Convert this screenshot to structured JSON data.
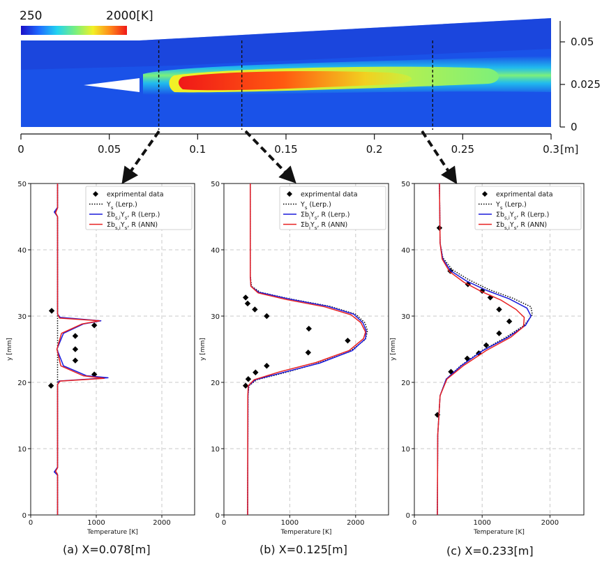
{
  "contour": {
    "colorbar": {
      "min_label": "250",
      "max_label": "2000[K]",
      "colors": [
        "#1a10c8",
        "#1f6bff",
        "#22d3f0",
        "#7df07a",
        "#f2f026",
        "#ff8a1a",
        "#f01818"
      ]
    },
    "x_axis": {
      "ticks": [
        0,
        0.05,
        0.1,
        0.15,
        0.2,
        0.25,
        0.3
      ],
      "tick_labels": [
        "0",
        "0.05",
        "0.1",
        "0.15",
        "0.2",
        "0.25",
        "0.3"
      ],
      "unit": "[m]"
    },
    "y_axis": {
      "ticks": [
        0,
        0.025,
        0.05
      ],
      "tick_labels": [
        "0",
        "0.025",
        "0.05"
      ]
    },
    "probe_lines_x": [
      0.078,
      0.125,
      0.233
    ]
  },
  "chart_data": [
    {
      "type": "line",
      "caption": "(a) X=0.078[m]",
      "xlabel": "Temperature [K]",
      "ylabel": "y [mm]",
      "xlim": [
        0,
        2500
      ],
      "ylim": [
        0,
        50
      ],
      "xticks": [
        0,
        1000,
        2000
      ],
      "yticks": [
        0,
        10,
        20,
        30,
        40,
        50
      ],
      "grid": true,
      "legend_position": "top-right",
      "legend": [
        "exprimental data",
        "Y_s (Lerp.)",
        "Σb_{s,i}Y_s, R (Lerp.)",
        "Σb_{s,i}Y_s, R (ANN)"
      ],
      "series": [
        {
          "name": "exprimental data",
          "kind": "scatter",
          "color": "#000000",
          "points": [
            [
              320,
              30.8
            ],
            [
              970,
              28.6
            ],
            [
              680,
              27.0
            ],
            [
              680,
              25.0
            ],
            [
              680,
              23.3
            ],
            [
              970,
              21.2
            ],
            [
              310,
              19.5
            ]
          ]
        },
        {
          "name": "Y_s (Lerp.)",
          "kind": "dotted",
          "color": "#000000",
          "points": [
            [
              410,
              0
            ],
            [
              410,
              6.2
            ],
            [
              370,
              6.6
            ],
            [
              410,
              7.2
            ],
            [
              410,
              45.0
            ],
            [
              370,
              45.6
            ],
            [
              410,
              46.3
            ],
            [
              410,
              50
            ]
          ]
        },
        {
          "name": "Σb_{s,i}Y_s, R (Lerp.)",
          "kind": "line",
          "color": "#1a1adc",
          "points": [
            [
              410,
              0
            ],
            [
              410,
              6.0
            ],
            [
              360,
              6.5
            ],
            [
              410,
              7.2
            ],
            [
              410,
              19.6
            ],
            [
              430,
              20.2
            ],
            [
              1180,
              20.7
            ],
            [
              850,
              21.0
            ],
            [
              500,
              22.5
            ],
            [
              400,
              25.0
            ],
            [
              500,
              27.4
            ],
            [
              800,
              28.8
            ],
            [
              1070,
              29.3
            ],
            [
              450,
              29.8
            ],
            [
              410,
              30.3
            ],
            [
              410,
              45.0
            ],
            [
              360,
              45.7
            ],
            [
              410,
              46.4
            ],
            [
              410,
              50
            ]
          ]
        },
        {
          "name": "Σb_{s,i}Y_s, R (ANN)",
          "kind": "line",
          "color": "#e82020",
          "points": [
            [
              410,
              0
            ],
            [
              410,
              6.1
            ],
            [
              380,
              6.6
            ],
            [
              410,
              7.1
            ],
            [
              410,
              19.7
            ],
            [
              450,
              20.2
            ],
            [
              1120,
              20.6
            ],
            [
              800,
              21.0
            ],
            [
              460,
              22.5
            ],
            [
              400,
              25.0
            ],
            [
              470,
              27.4
            ],
            [
              780,
              28.8
            ],
            [
              1050,
              29.3
            ],
            [
              440,
              29.7
            ],
            [
              410,
              30.3
            ],
            [
              410,
              45.0
            ],
            [
              380,
              45.6
            ],
            [
              410,
              46.3
            ],
            [
              410,
              50
            ]
          ]
        }
      ]
    },
    {
      "type": "line",
      "caption": "(b) X=0.125[m]",
      "xlabel": "Temperature [K]",
      "ylabel": "y [mm]",
      "xlim": [
        0,
        2500
      ],
      "ylim": [
        0,
        50
      ],
      "xticks": [
        0,
        1000,
        2000
      ],
      "yticks": [
        0,
        10,
        20,
        30,
        40,
        50
      ],
      "grid": true,
      "legend_position": "top-right",
      "legend": [
        "exprimental data",
        "Y_s (Lerp.)",
        "Σb_iY_s, R (Lerp.)",
        "Σb_iY_s, R (ANN)"
      ],
      "series": [
        {
          "name": "exprimental data",
          "kind": "scatter",
          "color": "#000000",
          "points": [
            [
              330,
              32.8
            ],
            [
              360,
              31.9
            ],
            [
              470,
              31.0
            ],
            [
              650,
              30.0
            ],
            [
              1290,
              28.1
            ],
            [
              1880,
              26.3
            ],
            [
              1280,
              24.5
            ],
            [
              650,
              22.5
            ],
            [
              480,
              21.5
            ],
            [
              370,
              20.5
            ],
            [
              330,
              19.5
            ]
          ]
        },
        {
          "name": "Y_s (Lerp.)",
          "kind": "dotted",
          "color": "#000000",
          "points": [
            [
              360,
              0
            ],
            [
              365,
              18.0
            ],
            [
              380,
              19.5
            ],
            [
              500,
              20.4
            ],
            [
              900,
              21.4
            ],
            [
              1400,
              22.8
            ],
            [
              1900,
              24.6
            ],
            [
              2150,
              26.5
            ],
            [
              2180,
              27.8
            ],
            [
              2140,
              29.0
            ],
            [
              2000,
              30.3
            ],
            [
              1600,
              31.5
            ],
            [
              1000,
              32.6
            ],
            [
              550,
              33.6
            ],
            [
              420,
              34.5
            ],
            [
              400,
              36.0
            ],
            [
              400,
              50
            ]
          ]
        },
        {
          "name": "Σb_iY_s, R (Lerp.)",
          "kind": "line",
          "color": "#1a1adc",
          "points": [
            [
              360,
              0
            ],
            [
              365,
              18.0
            ],
            [
              375,
              19.5
            ],
            [
              480,
              20.4
            ],
            [
              900,
              21.5
            ],
            [
              1450,
              22.9
            ],
            [
              1950,
              24.8
            ],
            [
              2150,
              26.6
            ],
            [
              2160,
              27.8
            ],
            [
              2110,
              29.0
            ],
            [
              1970,
              30.3
            ],
            [
              1570,
              31.5
            ],
            [
              980,
              32.6
            ],
            [
              530,
              33.6
            ],
            [
              410,
              34.5
            ],
            [
              400,
              36.0
            ],
            [
              400,
              50
            ]
          ]
        },
        {
          "name": "Σb_iY_s, R (ANN)",
          "kind": "line",
          "color": "#e82020",
          "points": [
            [
              360,
              0
            ],
            [
              362,
              18.0
            ],
            [
              370,
              19.5
            ],
            [
              460,
              20.4
            ],
            [
              850,
              21.6
            ],
            [
              1400,
              23.0
            ],
            [
              1900,
              24.8
            ],
            [
              2120,
              26.6
            ],
            [
              2150,
              27.6
            ],
            [
              2080,
              29.0
            ],
            [
              1930,
              30.2
            ],
            [
              1530,
              31.4
            ],
            [
              950,
              32.5
            ],
            [
              520,
              33.5
            ],
            [
              410,
              34.5
            ],
            [
              400,
              36.0
            ],
            [
              400,
              50
            ]
          ]
        }
      ]
    },
    {
      "type": "line",
      "caption": "(c) X=0.233[m]",
      "xlabel": "Temperature [K]",
      "ylabel": "y [mm]",
      "xlim": [
        0,
        2500
      ],
      "ylim": [
        0,
        50
      ],
      "xticks": [
        0,
        1000,
        2000
      ],
      "yticks": [
        0,
        10,
        20,
        30,
        40,
        50
      ],
      "grid": true,
      "legend_position": "top-right",
      "legend": [
        "exprimental data",
        "Y_s (Lerp.)",
        "Σb_{s,i}Y_s, R (Lerp.)",
        "Σb_{s,i}Y_s, R (ANN)"
      ],
      "series": [
        {
          "name": "exprimental data",
          "kind": "scatter",
          "color": "#000000",
          "points": [
            [
              370,
              43.3
            ],
            [
              530,
              36.8
            ],
            [
              790,
              34.8
            ],
            [
              1000,
              33.8
            ],
            [
              1120,
              32.8
            ],
            [
              1250,
              31.0
            ],
            [
              1400,
              29.2
            ],
            [
              1250,
              27.4
            ],
            [
              1060,
              25.6
            ],
            [
              950,
              24.4
            ],
            [
              780,
              23.6
            ],
            [
              540,
              21.6
            ],
            [
              340,
              15.1
            ]
          ]
        },
        {
          "name": "Y_s (Lerp.)",
          "kind": "dotted",
          "color": "#000000",
          "points": [
            [
              340,
              0
            ],
            [
              345,
              12.0
            ],
            [
              380,
              18.0
            ],
            [
              470,
              20.5
            ],
            [
              680,
              22.5
            ],
            [
              1000,
              24.8
            ],
            [
              1350,
              26.8
            ],
            [
              1620,
              28.6
            ],
            [
              1740,
              30.2
            ],
            [
              1720,
              31.4
            ],
            [
              1450,
              32.7
            ],
            [
              1100,
              34.0
            ],
            [
              800,
              35.5
            ],
            [
              560,
              37.0
            ],
            [
              420,
              38.8
            ],
            [
              380,
              41.0
            ],
            [
              370,
              50
            ]
          ]
        },
        {
          "name": "Σb_{s,i}Y_s, R (Lerp.)",
          "kind": "line",
          "color": "#1a1adc",
          "points": [
            [
              340,
              0
            ],
            [
              345,
              12.0
            ],
            [
              380,
              18.0
            ],
            [
              470,
              20.5
            ],
            [
              690,
              22.5
            ],
            [
              1010,
              24.8
            ],
            [
              1380,
              26.8
            ],
            [
              1640,
              28.6
            ],
            [
              1720,
              30.0
            ],
            [
              1660,
              31.2
            ],
            [
              1400,
              32.6
            ],
            [
              1060,
              33.9
            ],
            [
              770,
              35.3
            ],
            [
              540,
              36.8
            ],
            [
              420,
              38.6
            ],
            [
              380,
              41.0
            ],
            [
              370,
              50
            ]
          ]
        },
        {
          "name": "Σb_{s,i}Y_s, R (ANN)",
          "kind": "line",
          "color": "#e82020",
          "points": [
            [
              340,
              0
            ],
            [
              345,
              12.0
            ],
            [
              380,
              18.0
            ],
            [
              480,
              20.5
            ],
            [
              720,
              22.5
            ],
            [
              1060,
              24.8
            ],
            [
              1420,
              26.8
            ],
            [
              1610,
              28.4
            ],
            [
              1620,
              29.8
            ],
            [
              1500,
              31.0
            ],
            [
              1280,
              32.4
            ],
            [
              990,
              33.7
            ],
            [
              730,
              35.1
            ],
            [
              520,
              36.7
            ],
            [
              410,
              38.6
            ],
            [
              380,
              41.0
            ],
            [
              370,
              50
            ]
          ]
        }
      ]
    }
  ]
}
